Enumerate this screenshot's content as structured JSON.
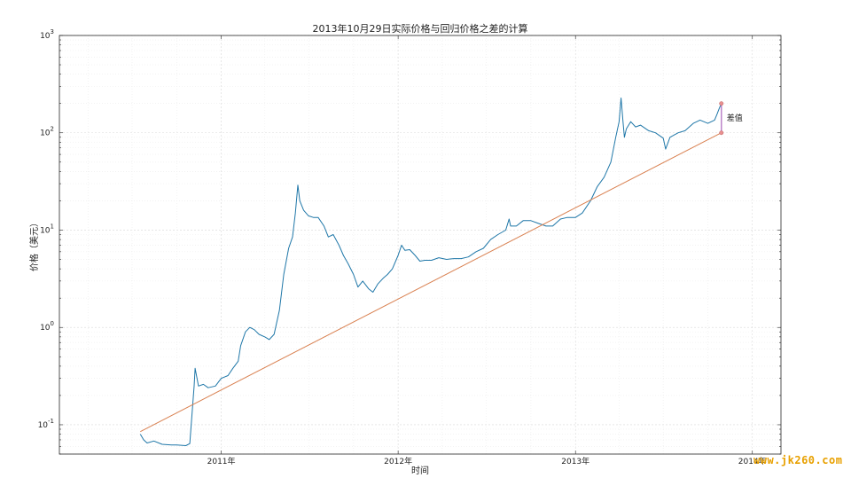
{
  "chart_data": {
    "type": "line",
    "title": "2013年10月29日实际价格与回归价格之差的计算",
    "xlabel": "时间",
    "ylabel": "价格（美元）",
    "y_scale": "log",
    "ylim": [
      0.05,
      1000
    ],
    "xlim": [
      "2010-02-01",
      "2014-03-01"
    ],
    "y_ticks": [
      {
        "value": 0.1,
        "base": "10",
        "exp": "-1"
      },
      {
        "value": 1,
        "base": "10",
        "exp": "0"
      },
      {
        "value": 10,
        "base": "10",
        "exp": "1"
      },
      {
        "value": 100,
        "base": "10",
        "exp": "2"
      },
      {
        "value": 1000,
        "base": "10",
        "exp": "3"
      }
    ],
    "x_ticks": [
      {
        "date": "2011-01-01",
        "label": "2011年"
      },
      {
        "date": "2012-01-01",
        "label": "2012年"
      },
      {
        "date": "2013-01-01",
        "label": "2013年"
      },
      {
        "date": "2014-01-01",
        "label": "2014年"
      }
    ],
    "grid": true,
    "annotation": {
      "text": "差值",
      "date": "2013-10-29"
    },
    "series": [
      {
        "color": "#1f77a8",
        "x": [
          "2010-07-18",
          "2010-07-25",
          "2010-08-01",
          "2010-08-15",
          "2010-09-01",
          "2010-09-20",
          "2010-10-01",
          "2010-10-20",
          "2010-10-28",
          "2010-11-06",
          "2010-11-08",
          "2010-11-15",
          "2010-11-25",
          "2010-12-05",
          "2010-12-20",
          "2011-01-01",
          "2011-01-15",
          "2011-01-25",
          "2011-02-05",
          "2011-02-10",
          "2011-02-20",
          "2011-03-01",
          "2011-03-10",
          "2011-03-20",
          "2011-04-01",
          "2011-04-10",
          "2011-04-20",
          "2011-05-01",
          "2011-05-10",
          "2011-05-20",
          "2011-05-28",
          "2011-06-03",
          "2011-06-08",
          "2011-06-12",
          "2011-06-20",
          "2011-06-30",
          "2011-07-10",
          "2011-07-20",
          "2011-08-01",
          "2011-08-10",
          "2011-08-20",
          "2011-09-01",
          "2011-09-10",
          "2011-09-20",
          "2011-10-01",
          "2011-10-10",
          "2011-10-20",
          "2011-11-01",
          "2011-11-10",
          "2011-11-20",
          "2011-12-01",
          "2011-12-10",
          "2011-12-20",
          "2012-01-01",
          "2012-01-08",
          "2012-01-15",
          "2012-01-25",
          "2012-02-05",
          "2012-02-15",
          "2012-02-25",
          "2012-03-10",
          "2012-03-25",
          "2012-04-10",
          "2012-04-25",
          "2012-05-10",
          "2012-05-25",
          "2012-06-10",
          "2012-06-25",
          "2012-07-10",
          "2012-07-25",
          "2012-08-10",
          "2012-08-17",
          "2012-08-20",
          "2012-09-01",
          "2012-09-15",
          "2012-10-01",
          "2012-10-15",
          "2012-11-01",
          "2012-11-15",
          "2012-12-01",
          "2012-12-15",
          "2013-01-01",
          "2013-01-15",
          "2013-02-01",
          "2013-02-15",
          "2013-03-01",
          "2013-03-15",
          "2013-03-25",
          "2013-04-01",
          "2013-04-05",
          "2013-04-09",
          "2013-04-12",
          "2013-04-16",
          "2013-04-25",
          "2013-05-05",
          "2013-05-15",
          "2013-06-01",
          "2013-06-15",
          "2013-07-01",
          "2013-07-06",
          "2013-07-15",
          "2013-08-01",
          "2013-08-15",
          "2013-09-01",
          "2013-09-15",
          "2013-10-01",
          "2013-10-15",
          "2013-10-20",
          "2013-10-25",
          "2013-10-29"
        ],
        "values": [
          0.08,
          0.07,
          0.065,
          0.068,
          0.063,
          0.062,
          0.062,
          0.061,
          0.064,
          0.25,
          0.38,
          0.25,
          0.26,
          0.24,
          0.25,
          0.3,
          0.32,
          0.38,
          0.45,
          0.65,
          0.9,
          1.0,
          0.95,
          0.85,
          0.8,
          0.75,
          0.85,
          1.5,
          3.5,
          6.5,
          8.5,
          15,
          29,
          20,
          16,
          14,
          13.5,
          13.5,
          11,
          8.5,
          9,
          7,
          5.5,
          4.5,
          3.5,
          2.6,
          3.0,
          2.5,
          2.3,
          2.8,
          3.2,
          3.5,
          4,
          5.5,
          7,
          6.2,
          6.3,
          5.5,
          4.8,
          4.9,
          4.9,
          5.2,
          5.0,
          5.1,
          5.1,
          5.3,
          6.0,
          6.5,
          8.0,
          9,
          10,
          13,
          11,
          11,
          12.5,
          12.5,
          11.8,
          11,
          11,
          13,
          13.5,
          13.5,
          15,
          20,
          28,
          35,
          50,
          90,
          130,
          228,
          130,
          90,
          110,
          130,
          115,
          120,
          105,
          100,
          88,
          68,
          90,
          100,
          105,
          125,
          135,
          125,
          135,
          155,
          180,
          200
        ]
      },
      {
        "color": "#d98050",
        "x": [
          "2010-07-18",
          "2013-10-29"
        ],
        "values": [
          0.085,
          100
        ]
      },
      {
        "color": "#b070c0",
        "x": [
          "2013-10-29",
          "2013-10-29"
        ],
        "values": [
          100,
          200
        ]
      }
    ]
  }
}
